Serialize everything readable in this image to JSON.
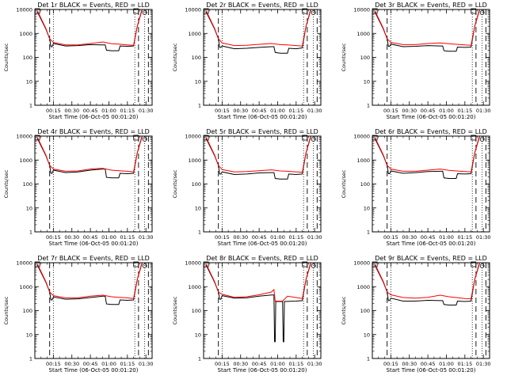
{
  "colors": {
    "events": "#000000",
    "lld": "#ff0000",
    "background": "#ffffff"
  },
  "chart_data": [
    {
      "type": "line",
      "title": "Det 1r  BLACK = Events, RED = LLD",
      "xlabel": "Start Time (06-Oct-05 00:01:20)",
      "ylabel": "Counts/sec",
      "yscale": "log",
      "ylim": [
        1,
        10000
      ],
      "xlim": [
        0,
        95
      ],
      "x_ticks": [
        "00:15",
        "00:30",
        "00:45",
        "01:00",
        "01:15",
        "01:30"
      ],
      "x_tick_values": [
        15,
        30,
        45,
        60,
        75,
        90
      ],
      "y_ticks": [
        "1",
        "10",
        "100",
        "1000",
        "10000"
      ],
      "y_tick_values": [
        1,
        10,
        100,
        1000,
        10000
      ],
      "vlines_dashed": [
        12,
        84,
        92
      ],
      "vlines_dotted": [
        15,
        81,
        89
      ],
      "series": [
        {
          "name": "Events",
          "x": [
            2,
            9,
            12,
            13,
            14,
            15,
            25,
            35,
            45,
            55,
            57,
            58,
            62,
            68,
            69,
            75,
            80,
            83,
            87
          ],
          "y": [
            8000,
            1500,
            600,
            280,
            280,
            380,
            300,
            310,
            340,
            330,
            330,
            200,
            190,
            190,
            300,
            290,
            300,
            2000,
            10000
          ]
        },
        {
          "name": "LLD",
          "x": [
            2,
            9,
            12,
            15,
            25,
            35,
            45,
            55,
            62,
            68,
            75,
            80,
            83,
            87
          ],
          "y": [
            9000,
            1600,
            600,
            420,
            330,
            330,
            380,
            440,
            370,
            360,
            330,
            320,
            2000,
            11000
          ]
        }
      ]
    },
    {
      "type": "line",
      "title": "Det 2r  BLACK = Events, RED = LLD",
      "xlabel": "Start Time (06-Oct-05 00:01:20)",
      "ylabel": "Counts/sec",
      "yscale": "log",
      "ylim": [
        1,
        10000
      ],
      "xlim": [
        0,
        95
      ],
      "x_ticks": [
        "00:15",
        "00:30",
        "00:45",
        "01:00",
        "01:15",
        "01:30"
      ],
      "x_tick_values": [
        15,
        30,
        45,
        60,
        75,
        90
      ],
      "y_ticks": [
        "1",
        "10",
        "100",
        "1000",
        "10000"
      ],
      "y_tick_values": [
        1,
        10,
        100,
        1000,
        10000
      ],
      "vlines_dashed": [
        12,
        84,
        92
      ],
      "vlines_dotted": [
        15,
        81,
        89
      ],
      "series": [
        {
          "name": "Events",
          "x": [
            2,
            9,
            12,
            13,
            14,
            15,
            25,
            35,
            45,
            55,
            57,
            58,
            62,
            68,
            69,
            75,
            80,
            83,
            87
          ],
          "y": [
            8000,
            1500,
            600,
            260,
            260,
            300,
            230,
            240,
            260,
            280,
            280,
            160,
            150,
            150,
            240,
            230,
            250,
            2000,
            10000
          ]
        },
        {
          "name": "LLD",
          "x": [
            2,
            9,
            12,
            15,
            25,
            35,
            45,
            55,
            62,
            68,
            75,
            80,
            83,
            87
          ],
          "y": [
            9000,
            1600,
            600,
            400,
            310,
            320,
            350,
            380,
            340,
            330,
            310,
            300,
            2000,
            11000
          ]
        }
      ]
    },
    {
      "type": "line",
      "title": "Det 3r  BLACK = Events, RED = LLD",
      "xlabel": "Start Time (06-Oct-05 00:01:20)",
      "ylabel": "Counts/sec",
      "yscale": "log",
      "ylim": [
        1,
        10000
      ],
      "xlim": [
        0,
        95
      ],
      "x_ticks": [
        "00:15",
        "00:30",
        "00:45",
        "01:00",
        "01:15",
        "01:30"
      ],
      "x_tick_values": [
        15,
        30,
        45,
        60,
        75,
        90
      ],
      "y_ticks": [
        "1",
        "10",
        "100",
        "1000",
        "10000"
      ],
      "y_tick_values": [
        1,
        10,
        100,
        1000,
        10000
      ],
      "vlines_dashed": [
        12,
        84,
        92
      ],
      "vlines_dotted": [
        15,
        81,
        89
      ],
      "series": [
        {
          "name": "Events",
          "x": [
            2,
            9,
            12,
            13,
            14,
            15,
            25,
            35,
            45,
            55,
            57,
            58,
            62,
            68,
            69,
            75,
            80,
            83,
            87
          ],
          "y": [
            8000,
            1500,
            600,
            290,
            290,
            360,
            280,
            290,
            310,
            300,
            300,
            190,
            180,
            180,
            270,
            260,
            270,
            2000,
            10000
          ]
        },
        {
          "name": "LLD",
          "x": [
            2,
            9,
            12,
            15,
            25,
            35,
            45,
            55,
            62,
            68,
            75,
            80,
            83,
            87
          ],
          "y": [
            9000,
            1600,
            600,
            420,
            340,
            340,
            380,
            400,
            370,
            350,
            330,
            320,
            2000,
            11000
          ]
        }
      ]
    },
    {
      "type": "line",
      "title": "Det 4r  BLACK = Events, RED = LLD",
      "xlabel": "Start Time (06-Oct-05 00:01:20)",
      "ylabel": "Counts/sec",
      "yscale": "log",
      "ylim": [
        1,
        10000
      ],
      "xlim": [
        0,
        95
      ],
      "x_ticks": [
        "00:15",
        "00:30",
        "00:45",
        "01:00",
        "01:15",
        "01:30"
      ],
      "x_tick_values": [
        15,
        30,
        45,
        60,
        75,
        90
      ],
      "y_ticks": [
        "1",
        "10",
        "100",
        "1000",
        "10000"
      ],
      "y_tick_values": [
        1,
        10,
        100,
        1000,
        10000
      ],
      "vlines_dashed": [
        12,
        84,
        92
      ],
      "vlines_dotted": [
        15,
        81,
        89
      ],
      "series": [
        {
          "name": "Events",
          "x": [
            2,
            9,
            12,
            13,
            14,
            15,
            25,
            35,
            45,
            55,
            57,
            58,
            62,
            68,
            69,
            75,
            80,
            83,
            87
          ],
          "y": [
            8000,
            1500,
            600,
            280,
            280,
            380,
            300,
            320,
            380,
            420,
            420,
            190,
            180,
            180,
            280,
            270,
            280,
            2000,
            10000
          ]
        },
        {
          "name": "LLD",
          "x": [
            2,
            9,
            12,
            15,
            25,
            35,
            45,
            55,
            62,
            68,
            75,
            80,
            83,
            87
          ],
          "y": [
            9000,
            1600,
            600,
            420,
            340,
            350,
            420,
            450,
            380,
            360,
            340,
            320,
            2000,
            11000
          ]
        }
      ]
    },
    {
      "type": "line",
      "title": "Det 5r  BLACK = Events, RED = LLD",
      "xlabel": "Start Time (06-Oct-05 00:01:20)",
      "ylabel": "Counts/sec",
      "yscale": "log",
      "ylim": [
        1,
        10000
      ],
      "xlim": [
        0,
        95
      ],
      "x_ticks": [
        "00:15",
        "00:30",
        "00:45",
        "01:00",
        "01:15",
        "01:30"
      ],
      "x_tick_values": [
        15,
        30,
        45,
        60,
        75,
        90
      ],
      "y_ticks": [
        "1",
        "10",
        "100",
        "1000",
        "10000"
      ],
      "y_tick_values": [
        1,
        10,
        100,
        1000,
        10000
      ],
      "vlines_dashed": [
        12,
        84,
        92
      ],
      "vlines_dotted": [
        15,
        81,
        89
      ],
      "series": [
        {
          "name": "Events",
          "x": [
            2,
            9,
            12,
            13,
            14,
            15,
            25,
            35,
            45,
            55,
            57,
            58,
            62,
            68,
            69,
            75,
            80,
            83,
            87
          ],
          "y": [
            8000,
            1500,
            600,
            260,
            260,
            320,
            250,
            260,
            290,
            300,
            300,
            170,
            160,
            160,
            260,
            250,
            260,
            2000,
            10000
          ]
        },
        {
          "name": "LLD",
          "x": [
            2,
            9,
            12,
            15,
            25,
            35,
            45,
            55,
            62,
            68,
            75,
            80,
            83,
            87
          ],
          "y": [
            9000,
            1600,
            600,
            400,
            320,
            330,
            360,
            390,
            350,
            340,
            320,
            310,
            2000,
            11000
          ]
        }
      ]
    },
    {
      "type": "line",
      "title": "Det 6r  BLACK = Events, RED = LLD",
      "xlabel": "Start Time (06-Oct-05 00:01:20)",
      "ylabel": "Counts/sec",
      "yscale": "log",
      "ylim": [
        1,
        10000
      ],
      "xlim": [
        0,
        95
      ],
      "x_ticks": [
        "00:15",
        "00:30",
        "00:45",
        "01:00",
        "01:15",
        "01:30"
      ],
      "x_tick_values": [
        15,
        30,
        45,
        60,
        75,
        90
      ],
      "y_ticks": [
        "1",
        "10",
        "100",
        "1000",
        "10000"
      ],
      "y_tick_values": [
        1,
        10,
        100,
        1000,
        10000
      ],
      "vlines_dashed": [
        12,
        84,
        92
      ],
      "vlines_dotted": [
        15,
        81,
        89
      ],
      "series": [
        {
          "name": "Events",
          "x": [
            2,
            9,
            12,
            13,
            14,
            15,
            25,
            35,
            45,
            55,
            57,
            58,
            62,
            68,
            69,
            75,
            80,
            83,
            87
          ],
          "y": [
            8000,
            1500,
            600,
            270,
            270,
            350,
            280,
            300,
            330,
            340,
            340,
            180,
            170,
            170,
            270,
            260,
            270,
            2000,
            10000
          ]
        },
        {
          "name": "LLD",
          "x": [
            2,
            9,
            12,
            15,
            25,
            35,
            45,
            55,
            62,
            68,
            75,
            80,
            83,
            87
          ],
          "y": [
            9000,
            1600,
            600,
            420,
            340,
            340,
            380,
            420,
            370,
            350,
            330,
            320,
            2000,
            11000
          ]
        }
      ]
    },
    {
      "type": "line",
      "title": "Det 7r  BLACK = Events, RED = LLD",
      "xlabel": "Start Time (06-Oct-05 00:01:20)",
      "ylabel": "Counts/sec",
      "yscale": "log",
      "ylim": [
        1,
        10000
      ],
      "xlim": [
        0,
        95
      ],
      "x_ticks": [
        "00:15",
        "00:30",
        "00:45",
        "01:00",
        "01:15",
        "01:30"
      ],
      "x_tick_values": [
        15,
        30,
        45,
        60,
        75,
        90
      ],
      "y_ticks": [
        "1",
        "10",
        "100",
        "1000",
        "10000"
      ],
      "y_tick_values": [
        1,
        10,
        100,
        1000,
        10000
      ],
      "vlines_dashed": [
        12,
        84,
        92
      ],
      "vlines_dotted": [
        15,
        81,
        89
      ],
      "series": [
        {
          "name": "Events",
          "x": [
            2,
            9,
            12,
            13,
            14,
            15,
            25,
            35,
            45,
            55,
            57,
            58,
            62,
            68,
            69,
            75,
            80,
            83,
            87
          ],
          "y": [
            8000,
            1500,
            600,
            280,
            280,
            370,
            300,
            310,
            350,
            400,
            400,
            190,
            180,
            180,
            280,
            270,
            280,
            2000,
            10000
          ]
        },
        {
          "name": "LLD",
          "x": [
            2,
            9,
            12,
            15,
            25,
            35,
            45,
            55,
            62,
            68,
            75,
            80,
            83,
            87
          ],
          "y": [
            9000,
            1600,
            600,
            420,
            340,
            340,
            400,
            440,
            380,
            360,
            340,
            320,
            2000,
            11000
          ]
        }
      ]
    },
    {
      "type": "line",
      "title": "Det 8r  BLACK = Events, RED = LLD",
      "xlabel": "Start Time (06-Oct-05 00:01:20)",
      "ylabel": "Counts/sec",
      "yscale": "log",
      "ylim": [
        1,
        10000
      ],
      "xlim": [
        0,
        95
      ],
      "x_ticks": [
        "00:15",
        "00:30",
        "00:45",
        "01:00",
        "01:15",
        "01:30"
      ],
      "x_tick_values": [
        15,
        30,
        45,
        60,
        75,
        90
      ],
      "y_ticks": [
        "1",
        "10",
        "100",
        "1000",
        "10000"
      ],
      "y_tick_values": [
        1,
        10,
        100,
        1000,
        10000
      ],
      "vlines_dashed": [
        12,
        84,
        92
      ],
      "vlines_dotted": [
        15,
        81,
        89
      ],
      "series": [
        {
          "name": "Events",
          "x": [
            2,
            9,
            12,
            13,
            14,
            15,
            25,
            35,
            45,
            55,
            57,
            57.5,
            58,
            58.5,
            64,
            64.5,
            65,
            65.5,
            75,
            80,
            83,
            87
          ],
          "y": [
            8000,
            1500,
            600,
            300,
            300,
            420,
            330,
            340,
            400,
            450,
            450,
            5,
            5,
            240,
            240,
            5,
            5,
            240,
            250,
            260,
            2000,
            10000
          ]
        },
        {
          "name": "LLD",
          "x": [
            2,
            9,
            12,
            15,
            25,
            35,
            45,
            55,
            57,
            58,
            64,
            68,
            75,
            80,
            83,
            87
          ],
          "y": [
            9000,
            1600,
            600,
            480,
            360,
            380,
            460,
            600,
            750,
            250,
            250,
            400,
            350,
            320,
            2000,
            11000
          ]
        }
      ]
    },
    {
      "type": "line",
      "title": "Det 9r  BLACK = Events, RED = LLD",
      "xlabel": "Start Time (06-Oct-05 00:01:20)",
      "ylabel": "Counts/sec",
      "yscale": "log",
      "ylim": [
        1,
        10000
      ],
      "xlim": [
        0,
        95
      ],
      "x_ticks": [
        "00:15",
        "00:30",
        "00:45",
        "01:00",
        "01:15",
        "01:30"
      ],
      "x_tick_values": [
        15,
        30,
        45,
        60,
        75,
        90
      ],
      "y_ticks": [
        "1",
        "10",
        "100",
        "1000",
        "10000"
      ],
      "y_tick_values": [
        1,
        10,
        100,
        1000,
        10000
      ],
      "vlines_dashed": [
        12,
        84,
        92
      ],
      "vlines_dotted": [
        15,
        81,
        89
      ],
      "series": [
        {
          "name": "Events",
          "x": [
            2,
            9,
            12,
            13,
            14,
            15,
            25,
            35,
            45,
            55,
            57,
            58,
            62,
            68,
            69,
            75,
            80,
            83,
            87
          ],
          "y": [
            8000,
            1500,
            600,
            260,
            260,
            330,
            250,
            250,
            270,
            260,
            260,
            180,
            170,
            170,
            250,
            240,
            250,
            2000,
            10000
          ]
        },
        {
          "name": "LLD",
          "x": [
            2,
            9,
            12,
            15,
            25,
            35,
            45,
            55,
            62,
            68,
            75,
            80,
            83,
            87
          ],
          "y": [
            9000,
            1600,
            600,
            460,
            350,
            330,
            360,
            440,
            380,
            350,
            320,
            310,
            2000,
            11000
          ]
        }
      ]
    }
  ]
}
